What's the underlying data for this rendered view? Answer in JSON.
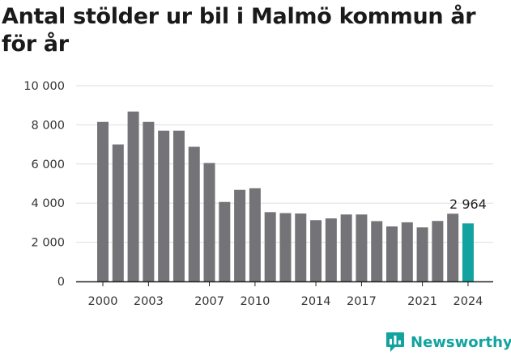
{
  "chart_data": {
    "type": "bar",
    "title": "Antal stölder ur bil i Malmö kommun år för år",
    "xlabel": "",
    "ylabel": "",
    "ylim": [
      0,
      10000
    ],
    "yticks": [
      0,
      2000,
      4000,
      6000,
      8000,
      10000
    ],
    "ytick_labels": [
      "0",
      "2 000",
      "4 000",
      "6 000",
      "8 000",
      "10 000"
    ],
    "xtick_labels": [
      "2000",
      "2003",
      "2007",
      "2010",
      "2014",
      "2017",
      "2021",
      "2024"
    ],
    "grid": true,
    "categories": [
      "2000",
      "2001",
      "2002",
      "2003",
      "2004",
      "2005",
      "2006",
      "2007",
      "2008",
      "2009",
      "2010",
      "2011",
      "2012",
      "2013",
      "2014",
      "2015",
      "2016",
      "2017",
      "2018",
      "2019",
      "2020",
      "2021",
      "2022",
      "2023",
      "2024"
    ],
    "values": [
      8150,
      7000,
      8680,
      8150,
      7700,
      7700,
      6880,
      6050,
      4060,
      4680,
      4760,
      3540,
      3490,
      3470,
      3130,
      3220,
      3420,
      3420,
      3080,
      2810,
      3020,
      2760,
      3090,
      3460,
      2964
    ],
    "colors": {
      "default": "#747377",
      "highlight": "#12a3a0"
    },
    "highlight_index": 24,
    "annotation": {
      "index": 24,
      "text": "2 964"
    }
  },
  "branding": {
    "logo_text": "Newsworthy",
    "logo_icon": "newsworthy-chart-icon",
    "color": "#12a3a0"
  }
}
